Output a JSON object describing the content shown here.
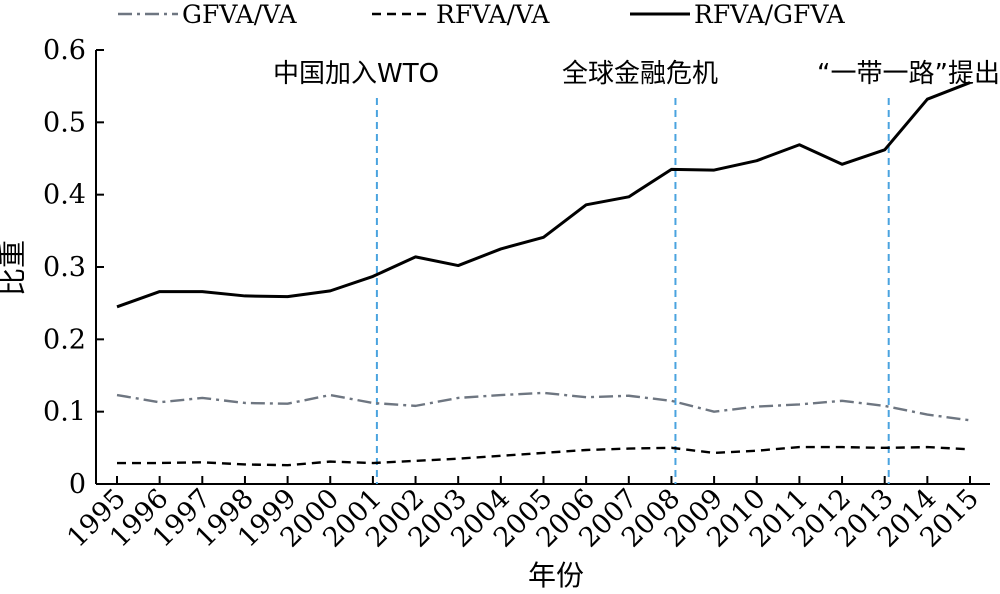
{
  "chart_data": {
    "type": "line",
    "xlabel": "年份",
    "ylabel": "比重",
    "ylim": [
      0,
      0.6
    ],
    "yticks": [
      "0",
      "0.1",
      "0.2",
      "0.3",
      "0.4",
      "0.5",
      "0.6"
    ],
    "ytick_values": [
      0,
      0.1,
      0.2,
      0.3,
      0.4,
      0.5,
      0.6
    ],
    "x": [
      "1995",
      "1996",
      "1997",
      "1998",
      "1999",
      "2000",
      "2001",
      "2002",
      "2003",
      "2004",
      "2005",
      "2006",
      "2007",
      "2008",
      "2009",
      "2010",
      "2011",
      "2012",
      "2013",
      "2014",
      "2015"
    ],
    "series": [
      {
        "name": "GFVA/VA",
        "color": "#6e7681",
        "dash": "dash-dot",
        "values": [
          0.123,
          0.113,
          0.119,
          0.112,
          0.111,
          0.123,
          0.112,
          0.108,
          0.119,
          0.123,
          0.126,
          0.12,
          0.122,
          0.115,
          0.1,
          0.107,
          0.11,
          0.115,
          0.108,
          0.096,
          0.088
        ]
      },
      {
        "name": "RFVA/VA",
        "color": "#000000",
        "dash": "dashed",
        "values": [
          0.029,
          0.029,
          0.03,
          0.027,
          0.026,
          0.031,
          0.029,
          0.032,
          0.035,
          0.039,
          0.043,
          0.047,
          0.049,
          0.05,
          0.043,
          0.046,
          0.051,
          0.051,
          0.05,
          0.051,
          0.048
        ]
      },
      {
        "name": "RFVA/GFVA",
        "color": "#000000",
        "dash": "solid",
        "values": [
          0.245,
          0.266,
          0.266,
          0.26,
          0.259,
          0.267,
          0.287,
          0.314,
          0.302,
          0.325,
          0.341,
          0.386,
          0.397,
          0.435,
          0.434,
          0.447,
          0.469,
          0.442,
          0.462,
          0.532,
          0.555
        ]
      }
    ],
    "vlines": [
      {
        "x": "2001",
        "label": "中国加入WTO",
        "color": "#4aa3df"
      },
      {
        "x": "2008",
        "label": "全球金融危机",
        "color": "#4aa3df"
      },
      {
        "x": "2013",
        "label": "“一带一路”提出",
        "color": "#4aa3df"
      }
    ],
    "legend_position": "top",
    "grid": false
  }
}
